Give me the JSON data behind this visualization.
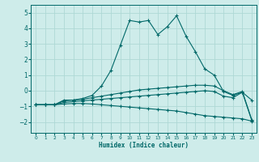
{
  "xlabel": "Humidex (Indice chaleur)",
  "bg_color": "#ceecea",
  "grid_color": "#aed8d5",
  "line_color": "#006868",
  "xlim": [
    -0.5,
    23.5
  ],
  "ylim": [
    -2.7,
    5.5
  ],
  "yticks": [
    -2,
    -1,
    0,
    1,
    2,
    3,
    4,
    5
  ],
  "xticks": [
    0,
    1,
    2,
    3,
    4,
    5,
    6,
    7,
    8,
    9,
    10,
    11,
    12,
    13,
    14,
    15,
    16,
    17,
    18,
    19,
    20,
    21,
    22,
    23
  ],
  "line1_x": [
    0,
    1,
    2,
    3,
    4,
    5,
    6,
    7,
    8,
    9,
    10,
    11,
    12,
    13,
    14,
    15,
    16,
    17,
    18,
    19,
    20,
    21,
    22,
    23
  ],
  "line1_y": [
    -0.9,
    -0.9,
    -0.9,
    -0.6,
    -0.6,
    -0.5,
    -0.3,
    0.3,
    1.3,
    2.9,
    4.5,
    4.4,
    4.5,
    3.6,
    4.1,
    4.8,
    3.5,
    2.5,
    1.4,
    1.0,
    -0.05,
    -0.3,
    -0.1,
    -0.6
  ],
  "line2_x": [
    0,
    1,
    2,
    3,
    4,
    5,
    6,
    7,
    8,
    9,
    10,
    11,
    12,
    13,
    14,
    15,
    16,
    17,
    18,
    19,
    20,
    21,
    22,
    23
  ],
  "line2_y": [
    -0.9,
    -0.9,
    -0.9,
    -0.65,
    -0.6,
    -0.55,
    -0.45,
    -0.35,
    -0.25,
    -0.15,
    -0.05,
    0.05,
    0.1,
    0.15,
    0.2,
    0.25,
    0.3,
    0.35,
    0.35,
    0.3,
    -0.0,
    -0.25,
    -0.05,
    -1.85
  ],
  "line3_x": [
    0,
    1,
    2,
    3,
    4,
    5,
    6,
    7,
    8,
    9,
    10,
    11,
    12,
    13,
    14,
    15,
    16,
    17,
    18,
    19,
    20,
    21,
    22,
    23
  ],
  "line3_y": [
    -0.9,
    -0.9,
    -0.9,
    -0.75,
    -0.7,
    -0.65,
    -0.6,
    -0.55,
    -0.5,
    -0.45,
    -0.4,
    -0.35,
    -0.3,
    -0.25,
    -0.2,
    -0.15,
    -0.1,
    -0.05,
    0.0,
    -0.05,
    -0.35,
    -0.45,
    -0.1,
    -1.9
  ],
  "line4_x": [
    0,
    1,
    2,
    3,
    4,
    5,
    6,
    7,
    8,
    9,
    10,
    11,
    12,
    13,
    14,
    15,
    16,
    17,
    18,
    19,
    20,
    21,
    22,
    23
  ],
  "line4_y": [
    -0.9,
    -0.9,
    -0.9,
    -0.85,
    -0.82,
    -0.82,
    -0.85,
    -0.9,
    -0.95,
    -1.0,
    -1.05,
    -1.1,
    -1.15,
    -1.2,
    -1.25,
    -1.3,
    -1.4,
    -1.5,
    -1.6,
    -1.65,
    -1.7,
    -1.75,
    -1.8,
    -1.95
  ]
}
